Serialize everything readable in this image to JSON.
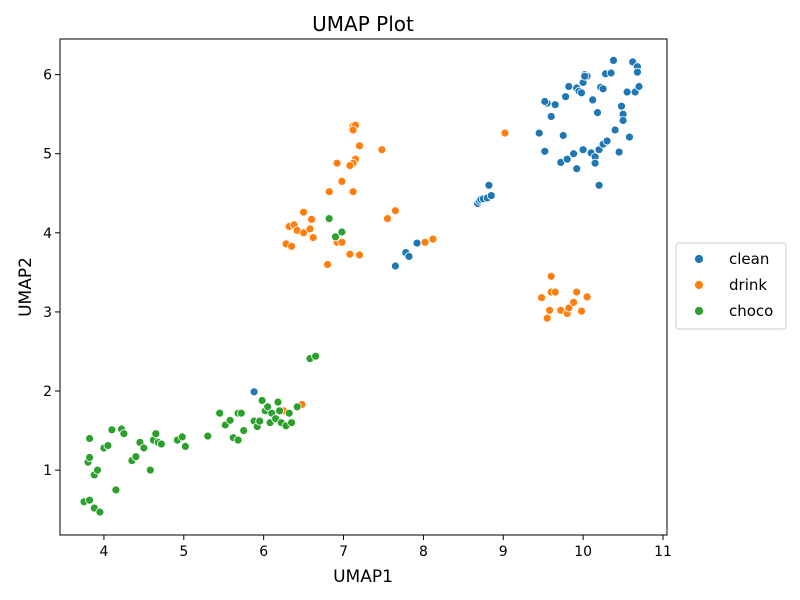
{
  "chart_data": {
    "type": "scatter",
    "title": "UMAP Plot",
    "xlabel": "UMAP1",
    "ylabel": "UMAP2",
    "xlim": [
      3.45,
      11.05
    ],
    "ylim": [
      0.18,
      6.45
    ],
    "xticks": [
      4,
      5,
      6,
      7,
      8,
      9,
      10,
      11
    ],
    "yticks": [
      1,
      2,
      3,
      4,
      5,
      6
    ],
    "grid": false,
    "legend_position": "right",
    "series": [
      {
        "name": "clean",
        "color": "#1f77b4",
        "points": [
          [
            9.55,
            5.64
          ],
          [
            9.52,
            5.66
          ],
          [
            9.6,
            5.47
          ],
          [
            9.45,
            5.26
          ],
          [
            9.52,
            5.03
          ],
          [
            9.65,
            5.62
          ],
          [
            9.72,
            4.89
          ],
          [
            9.75,
            5.23
          ],
          [
            9.8,
            4.93
          ],
          [
            9.78,
            5.72
          ],
          [
            9.82,
            5.85
          ],
          [
            9.88,
            5.0
          ],
          [
            9.92,
            5.83
          ],
          [
            9.95,
            5.79
          ],
          [
            9.98,
            5.77
          ],
          [
            10.0,
            5.9
          ],
          [
            10.02,
            6.0
          ],
          [
            10.05,
            5.98
          ],
          [
            10.1,
            5.01
          ],
          [
            10.12,
            5.68
          ],
          [
            10.15,
            4.96
          ],
          [
            10.18,
            5.52
          ],
          [
            10.2,
            5.05
          ],
          [
            10.22,
            5.84
          ],
          [
            10.25,
            5.82
          ],
          [
            10.28,
            6.01
          ],
          [
            10.3,
            5.15
          ],
          [
            10.35,
            6.02
          ],
          [
            10.4,
            5.3
          ],
          [
            10.45,
            5.02
          ],
          [
            10.48,
            5.6
          ],
          [
            10.5,
            5.5
          ],
          [
            10.55,
            5.78
          ],
          [
            10.58,
            5.21
          ],
          [
            10.62,
            6.16
          ],
          [
            10.65,
            5.78
          ],
          [
            10.68,
            6.1
          ],
          [
            10.7,
            5.85
          ],
          [
            10.38,
            6.18
          ],
          [
            10.2,
            4.6
          ],
          [
            10.15,
            4.88
          ],
          [
            10.0,
            5.05
          ],
          [
            9.92,
            4.81
          ],
          [
            10.5,
            5.42
          ],
          [
            10.25,
            5.12
          ],
          [
            10.68,
            6.03
          ],
          [
            10.3,
            5.16
          ],
          [
            10.02,
            5.98
          ],
          [
            8.68,
            4.37
          ],
          [
            8.7,
            4.4
          ],
          [
            8.72,
            4.42
          ],
          [
            8.75,
            4.43
          ],
          [
            8.8,
            4.44
          ],
          [
            8.85,
            4.47
          ],
          [
            8.82,
            4.6
          ],
          [
            7.65,
            3.58
          ],
          [
            7.78,
            3.75
          ],
          [
            7.82,
            3.7
          ],
          [
            7.92,
            3.87
          ],
          [
            5.88,
            1.99
          ]
        ]
      },
      {
        "name": "drink",
        "color": "#ff7f0e",
        "points": [
          [
            7.12,
            5.35
          ],
          [
            7.15,
            5.36
          ],
          [
            7.12,
            5.3
          ],
          [
            7.2,
            5.1
          ],
          [
            7.48,
            5.05
          ],
          [
            6.92,
            4.88
          ],
          [
            7.15,
            4.93
          ],
          [
            7.12,
            4.88
          ],
          [
            7.08,
            4.85
          ],
          [
            6.98,
            4.65
          ],
          [
            7.12,
            4.52
          ],
          [
            6.82,
            4.52
          ],
          [
            6.5,
            4.26
          ],
          [
            6.32,
            4.08
          ],
          [
            6.38,
            4.1
          ],
          [
            6.42,
            4.03
          ],
          [
            6.5,
            4.0
          ],
          [
            6.58,
            4.05
          ],
          [
            6.6,
            4.17
          ],
          [
            6.62,
            3.94
          ],
          [
            6.28,
            3.86
          ],
          [
            6.35,
            3.83
          ],
          [
            6.92,
            3.88
          ],
          [
            6.98,
            3.88
          ],
          [
            7.08,
            3.73
          ],
          [
            7.2,
            3.72
          ],
          [
            6.8,
            3.6
          ],
          [
            7.55,
            4.18
          ],
          [
            7.65,
            4.28
          ],
          [
            8.02,
            3.88
          ],
          [
            8.12,
            3.92
          ],
          [
            9.02,
            5.26
          ],
          [
            9.48,
            3.18
          ],
          [
            9.6,
            3.45
          ],
          [
            9.6,
            3.25
          ],
          [
            9.65,
            3.25
          ],
          [
            9.58,
            3.02
          ],
          [
            9.55,
            2.92
          ],
          [
            9.72,
            3.02
          ],
          [
            9.8,
            2.98
          ],
          [
            9.82,
            3.05
          ],
          [
            9.88,
            3.12
          ],
          [
            9.92,
            3.25
          ],
          [
            9.98,
            3.01
          ],
          [
            10.05,
            3.19
          ],
          [
            6.25,
            1.75
          ],
          [
            6.48,
            1.83
          ]
        ]
      },
      {
        "name": "choco",
        "color": "#2ca02c",
        "points": [
          [
            6.82,
            4.18
          ],
          [
            6.9,
            3.95
          ],
          [
            6.98,
            4.01
          ],
          [
            6.58,
            2.41
          ],
          [
            6.65,
            2.44
          ],
          [
            3.75,
            0.6
          ],
          [
            3.82,
            0.62
          ],
          [
            3.88,
            0.52
          ],
          [
            3.95,
            0.47
          ],
          [
            3.88,
            0.94
          ],
          [
            3.92,
            1.0
          ],
          [
            3.8,
            1.1
          ],
          [
            3.82,
            1.16
          ],
          [
            3.82,
            1.4
          ],
          [
            4.0,
            1.28
          ],
          [
            4.05,
            1.31
          ],
          [
            4.1,
            1.51
          ],
          [
            4.15,
            0.75
          ],
          [
            4.22,
            1.52
          ],
          [
            4.25,
            1.46
          ],
          [
            4.35,
            1.12
          ],
          [
            4.4,
            1.17
          ],
          [
            4.45,
            1.35
          ],
          [
            4.5,
            1.28
          ],
          [
            4.58,
            1.0
          ],
          [
            4.62,
            1.38
          ],
          [
            4.65,
            1.46
          ],
          [
            4.68,
            1.35
          ],
          [
            4.72,
            1.33
          ],
          [
            4.92,
            1.38
          ],
          [
            4.98,
            1.42
          ],
          [
            5.02,
            1.3
          ],
          [
            5.3,
            1.43
          ],
          [
            5.45,
            1.72
          ],
          [
            5.52,
            1.57
          ],
          [
            5.58,
            1.63
          ],
          [
            5.62,
            1.41
          ],
          [
            5.68,
            1.38
          ],
          [
            5.68,
            1.72
          ],
          [
            5.72,
            1.72
          ],
          [
            5.75,
            1.5
          ],
          [
            5.88,
            1.62
          ],
          [
            5.92,
            1.55
          ],
          [
            5.95,
            1.62
          ],
          [
            5.98,
            1.88
          ],
          [
            6.02,
            1.75
          ],
          [
            6.05,
            1.8
          ],
          [
            6.08,
            1.6
          ],
          [
            6.1,
            1.72
          ],
          [
            6.15,
            1.65
          ],
          [
            6.18,
            1.86
          ],
          [
            6.22,
            1.6
          ],
          [
            6.28,
            1.56
          ],
          [
            6.32,
            1.72
          ],
          [
            6.35,
            1.6
          ],
          [
            6.42,
            1.8
          ],
          [
            6.2,
            1.75
          ]
        ]
      }
    ]
  }
}
